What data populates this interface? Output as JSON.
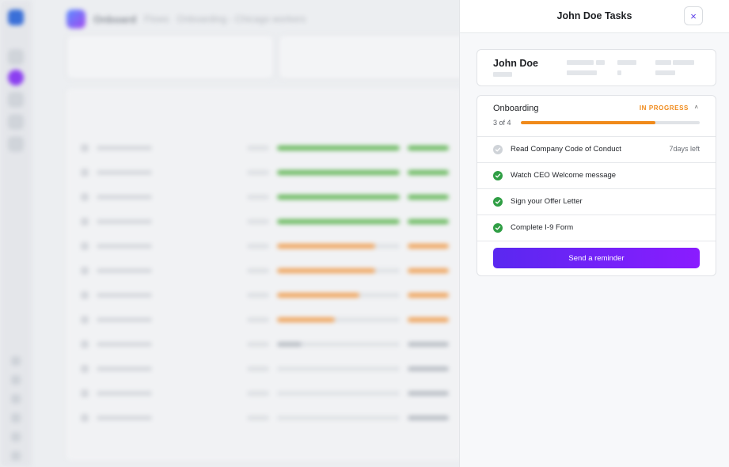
{
  "background": {
    "app_name": "Onboard",
    "breadcrumb": [
      "Flows",
      "Onboarding - Chicago workers"
    ],
    "rows": [
      {
        "progress": 1.0,
        "status_color": "#66b85a"
      },
      {
        "progress": 1.0,
        "status_color": "#66b85a"
      },
      {
        "progress": 1.0,
        "status_color": "#66b85a"
      },
      {
        "progress": 1.0,
        "status_color": "#66b85a"
      },
      {
        "progress": 0.8,
        "status_color": "#f0a35a"
      },
      {
        "progress": 0.8,
        "status_color": "#f0a35a"
      },
      {
        "progress": 0.67,
        "status_color": "#f0a35a"
      },
      {
        "progress": 0.47,
        "status_color": "#f0a35a"
      },
      {
        "progress": 0.2,
        "status_color": "#b9bec5"
      },
      {
        "progress": 0.0,
        "status_color": "#b9bec5"
      },
      {
        "progress": 0.0,
        "status_color": "#b9bec5"
      },
      {
        "progress": 0.0,
        "status_color": "#b9bec5"
      }
    ]
  },
  "panel": {
    "title": "John Doe Tasks",
    "close_icon": "×",
    "user": {
      "name": "John Doe"
    },
    "flow": {
      "title": "Onboarding",
      "status": "IN PROGRESS",
      "chevron_icon": "˄",
      "progress_text": "3 of 4",
      "progress": 0.75,
      "accent": "#f08a1a"
    },
    "tasks": [
      {
        "label": "Read Company Code of Conduct",
        "meta": "7days left",
        "done": false
      },
      {
        "label": "Watch CEO Welcome message",
        "meta": "",
        "done": true
      },
      {
        "label": "Sign your Offer Letter",
        "meta": "",
        "done": true
      },
      {
        "label": "Complete I-9 Form",
        "meta": "",
        "done": true
      }
    ],
    "reminder_button": "Send a reminder"
  }
}
